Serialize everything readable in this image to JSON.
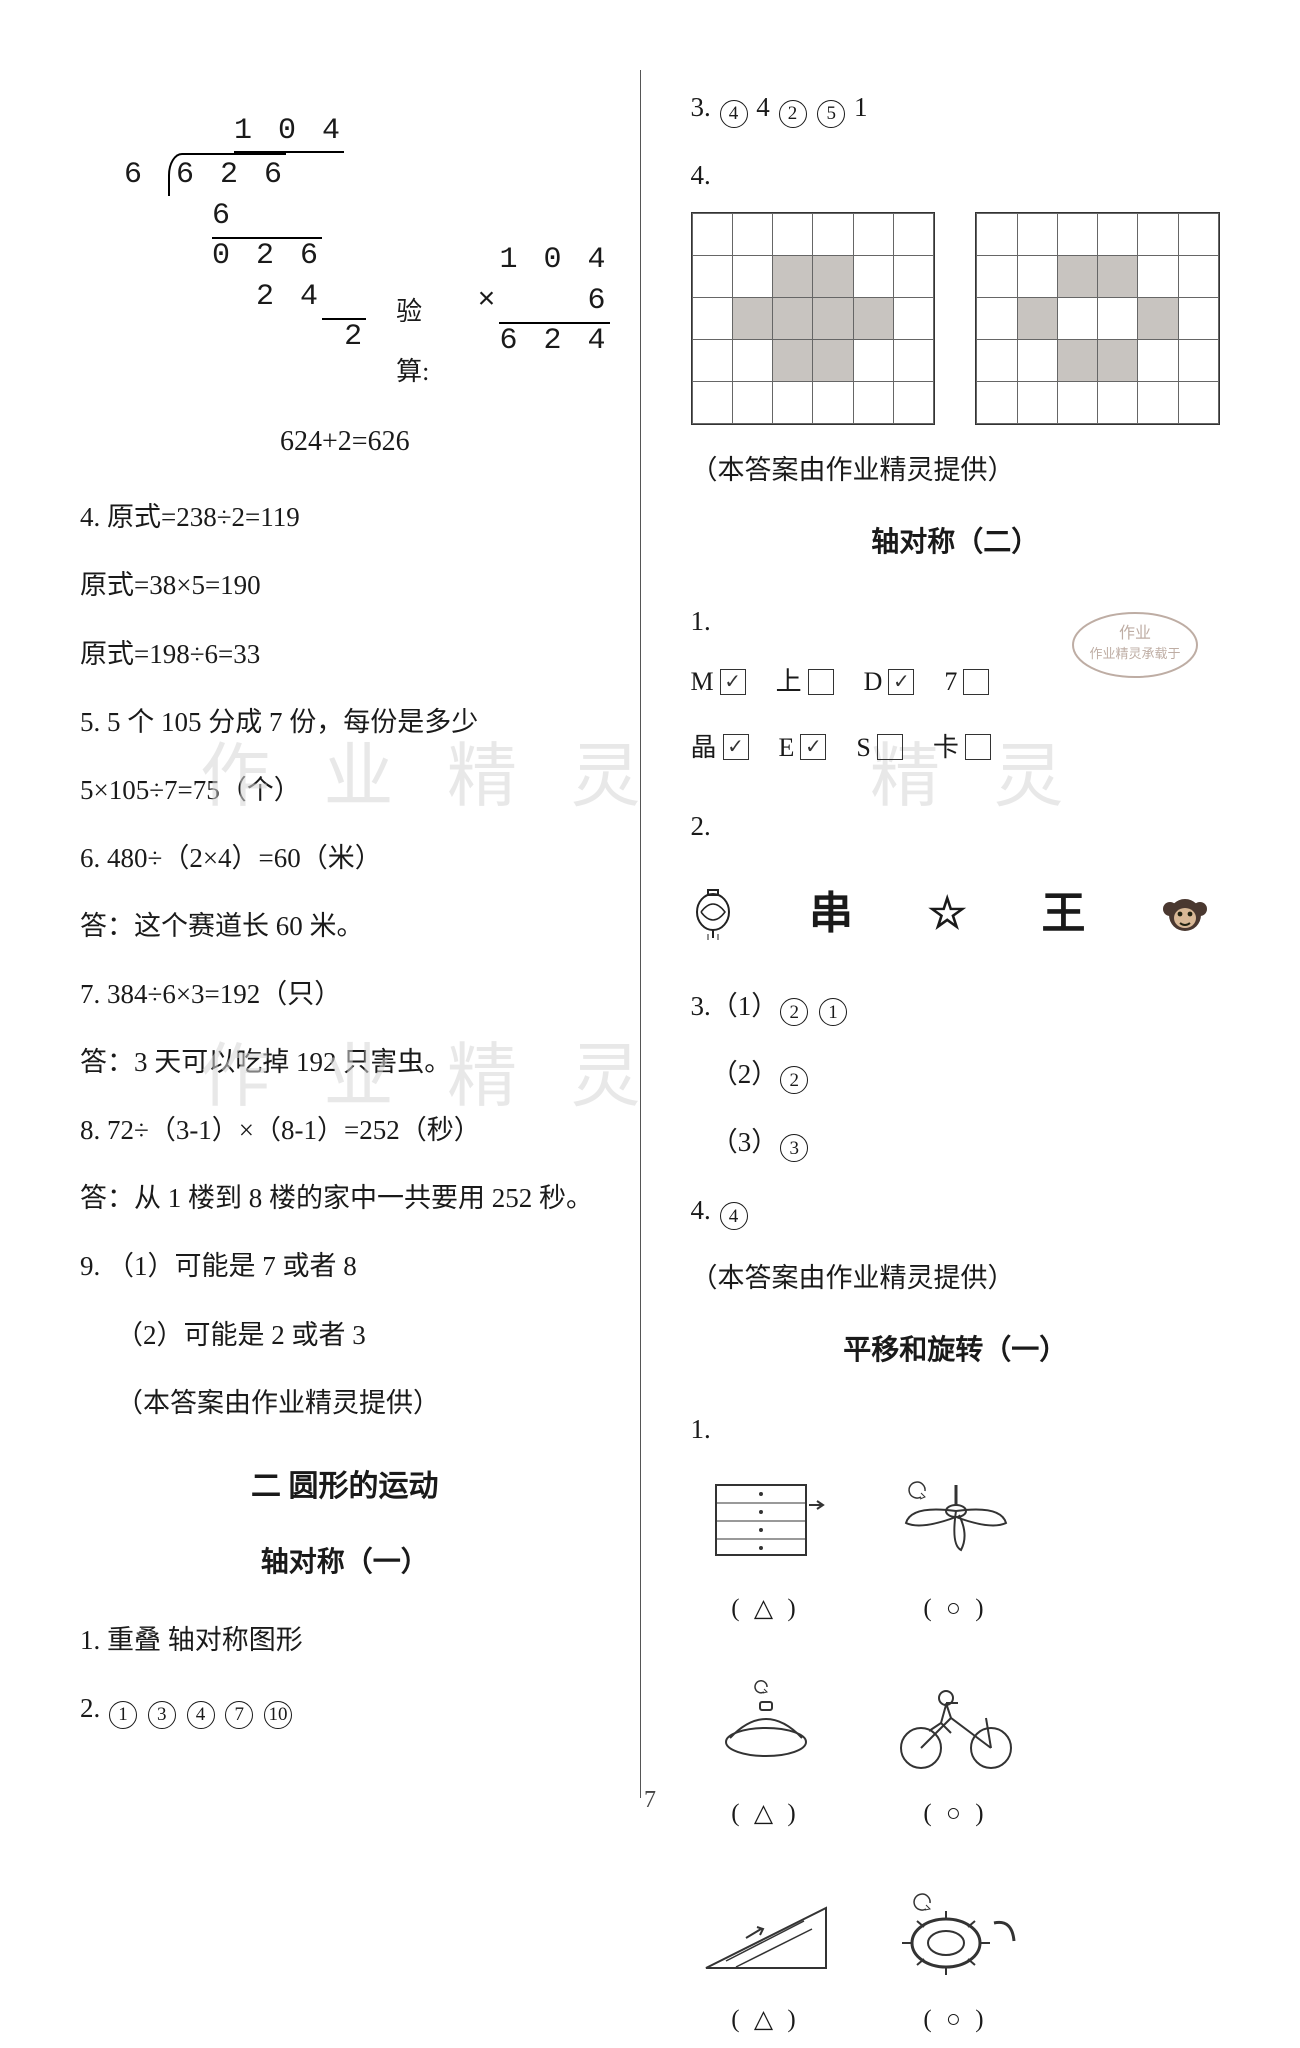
{
  "page_number": "7",
  "watermarks": {
    "w1": "作 业 精 灵",
    "w2": "作 业 精 灵",
    "w3": "精 灵"
  },
  "left": {
    "longdiv": {
      "quotient": "1 0 4",
      "divisor": "6",
      "dividend": "6 2 6",
      "step1": "6",
      "step2": "0 2 6",
      "step3": "2 4",
      "remainder": "2"
    },
    "mult": {
      "a": "1 0 4",
      "b": "6",
      "prod": "6 2 4",
      "op": "×"
    },
    "verify_label": "验算:",
    "verify_eq": "624+2=626",
    "q4a": "4.  原式=238÷2=119",
    "q4b": "原式=38×5=190",
    "q4c": "原式=198÷6=33",
    "q5a": "5.   5 个 105 分成 7 份，每份是多少",
    "q5b": "5×105÷7=75（个）",
    "q6a": "6.   480÷（2×4）=60（米）",
    "q6b": "答：这个赛道长 60 米。",
    "q7a": "7.   384÷6×3=192（只）",
    "q7b": "答：3 天可以吃掉 192 只害虫。",
    "q8a": "8.   72÷（3-1）×（8-1）=252（秒）",
    "q8b": "答：从 1 楼到 8 楼的家中一共要用 252 秒。",
    "q9a": "9.  （1）可能是 7 或者 8",
    "q9b": "（2）可能是 2 或者 3",
    "provider": "（本答案由作业精灵提供）",
    "sec_title": "二   圆形的运动",
    "sub_title": "轴对称（一）",
    "a1": "1.    重叠    轴对称图形",
    "a2_pre": "2.   ",
    "a2_nums": [
      "1",
      "3",
      "4",
      "7",
      "10"
    ]
  },
  "right": {
    "q3_pre": "3.   ",
    "q3_parts": [
      {
        "type": "circ",
        "v": "4"
      },
      {
        "type": "plain",
        "v": "  4   "
      },
      {
        "type": "circ",
        "v": "2"
      },
      {
        "type": "plain",
        "v": "   "
      },
      {
        "type": "circ",
        "v": "5"
      },
      {
        "type": "plain",
        "v": "   1"
      }
    ],
    "q4_label": "4.",
    "grid1": [
      [
        0,
        0,
        0,
        0,
        0,
        0
      ],
      [
        0,
        0,
        1,
        1,
        0,
        0
      ],
      [
        0,
        1,
        1,
        1,
        1,
        0
      ],
      [
        0,
        0,
        1,
        1,
        0,
        0
      ],
      [
        0,
        0,
        0,
        0,
        0,
        0
      ]
    ],
    "grid2": [
      [
        0,
        0,
        0,
        0,
        0,
        0
      ],
      [
        0,
        0,
        1,
        1,
        0,
        0
      ],
      [
        0,
        1,
        0,
        0,
        1,
        0
      ],
      [
        0,
        0,
        1,
        1,
        0,
        0
      ],
      [
        0,
        0,
        0,
        0,
        0,
        0
      ]
    ],
    "provider1": "（本答案由作业精灵提供）",
    "sub_title2": "轴对称（二）",
    "letters_q": "1.",
    "letters_row1": [
      {
        "l": "M",
        "c": true
      },
      {
        "l": "上",
        "c": false
      },
      {
        "l": "D",
        "c": true
      },
      {
        "l": "7",
        "c": false
      }
    ],
    "letters_row2": [
      {
        "l": "晶",
        "c": true
      },
      {
        "l": "E",
        "c": true
      },
      {
        "l": "S",
        "c": false
      },
      {
        "l": "卡",
        "c": false
      }
    ],
    "q2_label": "2.",
    "symbols": [
      "lantern",
      "串",
      "☆",
      "王",
      "monkey"
    ],
    "q3b_lines": [
      {
        "pre": "3.（1）",
        "circs": [
          "2",
          "1"
        ]
      },
      {
        "pre": "   （2）",
        "circs": [
          "2"
        ]
      },
      {
        "pre": "   （3）",
        "circs": [
          "3"
        ]
      }
    ],
    "q4b_pre": "4.   ",
    "q4b_circ": "4",
    "provider2": "（本答案由作业精灵提供）",
    "sub_title3": "平移和旋转（一）",
    "pic_q": "1.",
    "pics": [
      {
        "mark": "△",
        "type": "drawer"
      },
      {
        "mark": "○",
        "type": "fan"
      },
      {
        "mark": "△",
        "type": "lid"
      },
      {
        "mark": "○",
        "type": "bicycle"
      },
      {
        "mark": "△",
        "type": "ramp"
      },
      {
        "mark": "○",
        "type": "wheel"
      }
    ]
  },
  "colors": {
    "text": "#1a1a1a",
    "grid_fill": "#c8c4c0",
    "grid_border": "#666",
    "watermark": "#d6d6d6",
    "divider": "#555"
  }
}
